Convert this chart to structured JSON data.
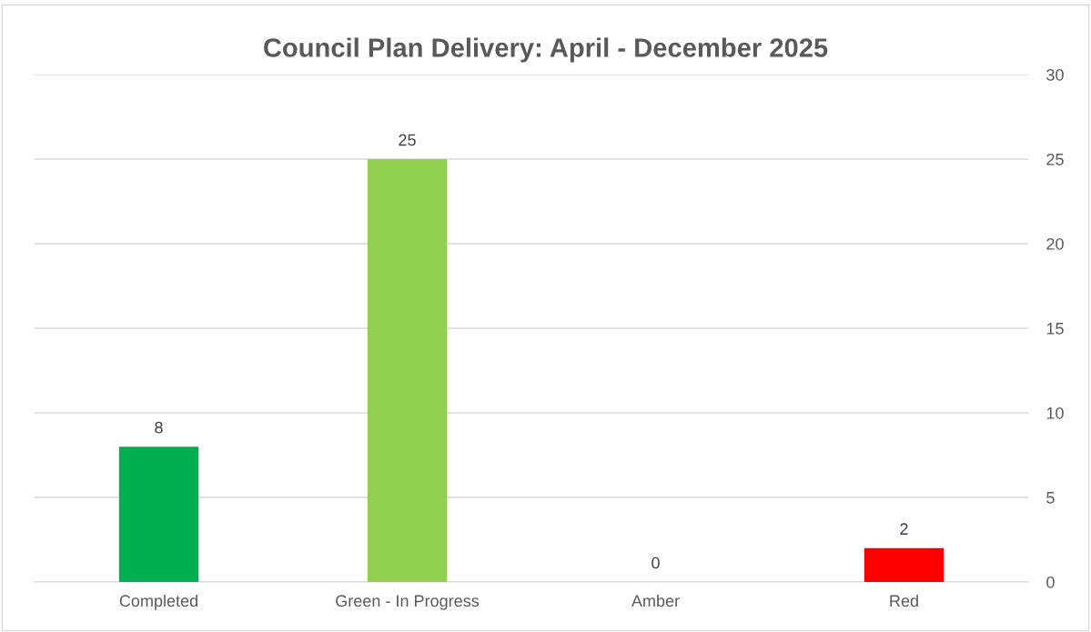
{
  "chart_data": {
    "type": "bar",
    "title": "Council Plan Delivery: April - December 2025",
    "categories": [
      "Completed",
      "Green - In Progress",
      "Amber",
      "Red"
    ],
    "values": [
      8,
      25,
      0,
      2
    ],
    "colors": [
      "#00b050",
      "#92d050",
      "#ffc000",
      "#ff0000"
    ],
    "ylim": [
      0,
      30
    ],
    "yticks": [
      0,
      5,
      10,
      15,
      20,
      25,
      30
    ],
    "grid": "y",
    "data_labels": true
  }
}
